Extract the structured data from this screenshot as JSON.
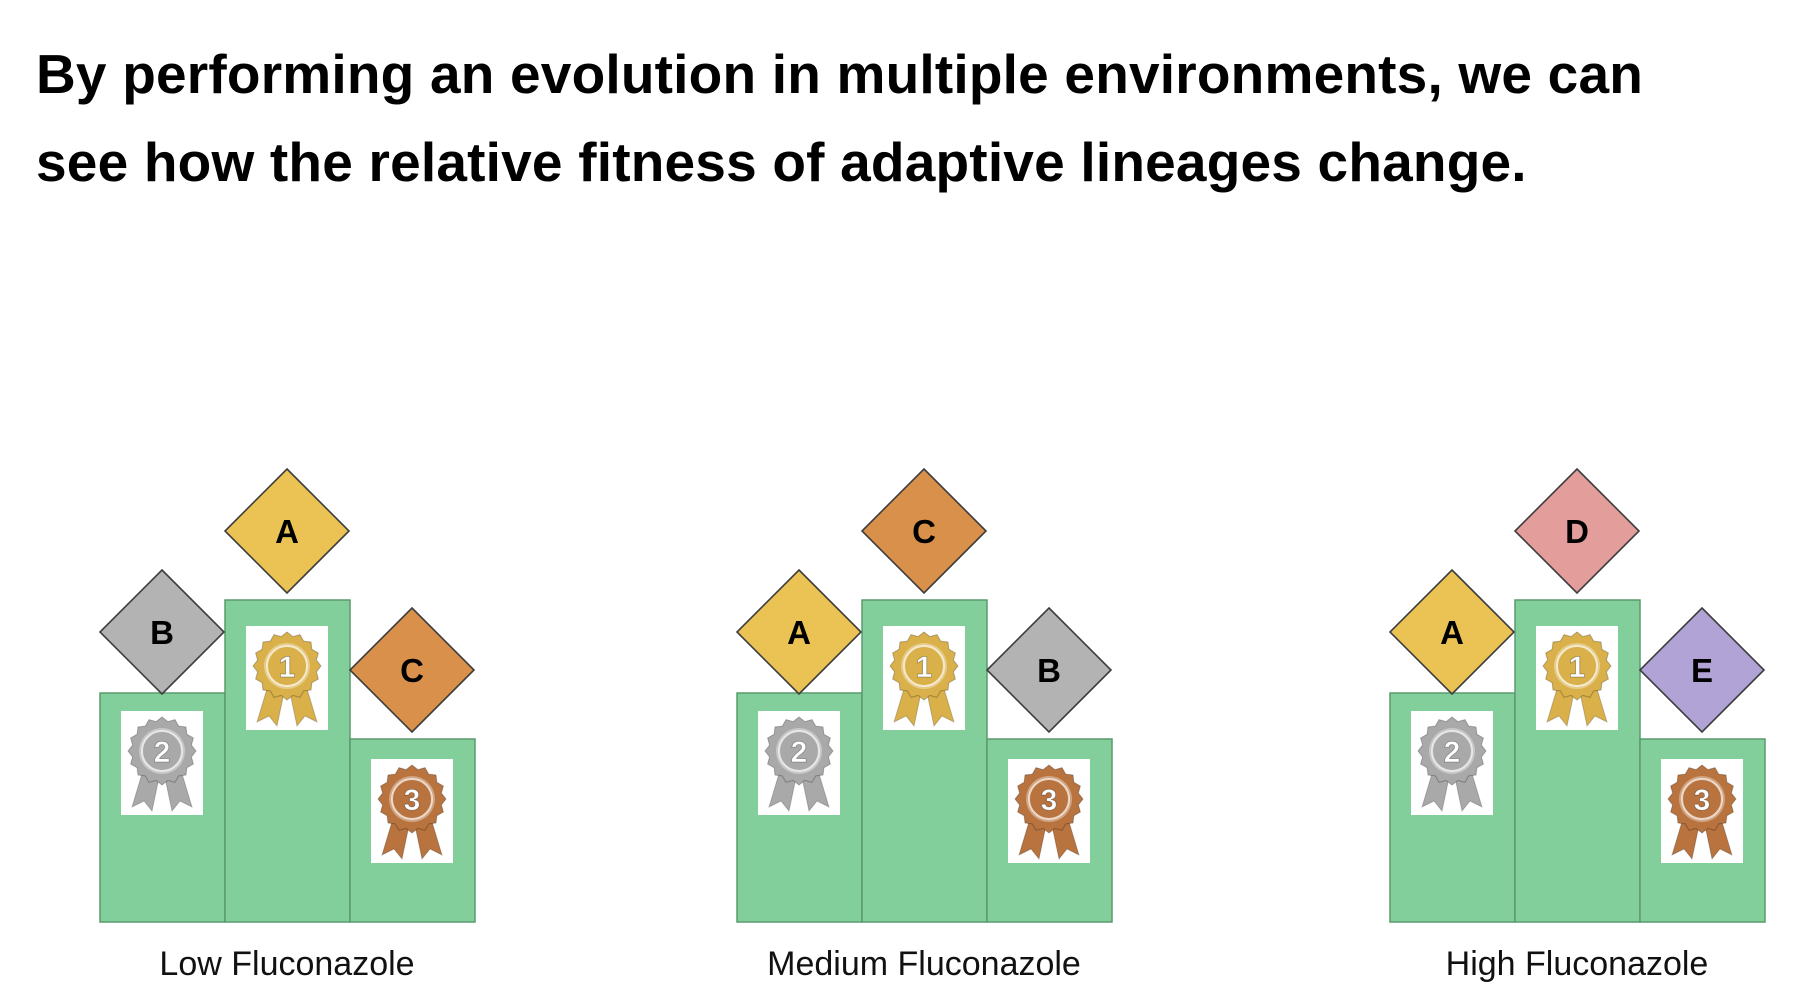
{
  "headline": {
    "line1": "By performing an evolution in multiple environments, we can",
    "line2": "see how the relative fitness of adaptive lineages change."
  },
  "colors": {
    "podium": "#82cf9c",
    "podium_stroke": "#5a9a6c",
    "A": "#eac354",
    "B": "#b3b3b3",
    "C": "#d8904a",
    "D": "#e39e9c",
    "E": "#b1a3d6",
    "gold": "#d9b04a",
    "silver": "#a9a9a9",
    "bronze": "#b8733f"
  },
  "environments": [
    {
      "label": "Low Fluconazole",
      "first": "A",
      "second": "B",
      "third": "C",
      "medal_first": "1",
      "medal_second": "2",
      "medal_third": "3"
    },
    {
      "label": "Medium Fluconazole",
      "first": "C",
      "second": "A",
      "third": "B",
      "medal_first": "1",
      "medal_second": "2",
      "medal_third": "3"
    },
    {
      "label": "High Fluconazole",
      "first": "D",
      "second": "A",
      "third": "E",
      "medal_first": "1",
      "medal_second": "2",
      "medal_third": "3"
    }
  ]
}
